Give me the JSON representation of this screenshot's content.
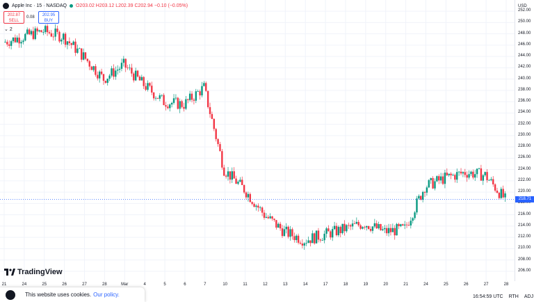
{
  "legend": {
    "title": "Apple Inc · 15 · NASDAQ",
    "ohlc": "O203.02 H203.12 L202.39 C202.94 −0.10 (−0.05%)"
  },
  "trade": {
    "sell_price": "202.87",
    "sell_label": "SELL",
    "spread": "0.08",
    "buy_price": "202.95",
    "buy_label": "BUY",
    "collapse_label": "2"
  },
  "branding": {
    "name": "TradingView"
  },
  "cookie": {
    "text": "This website uses cookies.",
    "link": "Our policy."
  },
  "price_axis": {
    "currency": "USD",
    "last_price": "218.71",
    "ticks": [
      "252.00",
      "250.00",
      "248.00",
      "246.00",
      "244.00",
      "242.00",
      "240.00",
      "238.00",
      "236.00",
      "234.00",
      "232.00",
      "230.00",
      "228.00",
      "226.00",
      "224.00",
      "222.00",
      "220.00",
      "218.00",
      "216.00",
      "214.00",
      "212.00",
      "210.00",
      "208.00",
      "206.00"
    ]
  },
  "time_axis": {
    "ticks": [
      "21",
      "24",
      "25",
      "26",
      "27",
      "28",
      "Mar",
      "4",
      "5",
      "6",
      "7",
      "10",
      "11",
      "12",
      "13",
      "14",
      "17",
      "18",
      "19",
      "20",
      "21",
      "24",
      "25",
      "26",
      "27",
      "28"
    ]
  },
  "footer": {
    "time": "16:54:59 UTC",
    "session": "RTH",
    "adj": "ADJ"
  },
  "chart_data": {
    "type": "line",
    "title": "Apple Inc · 15 · NASDAQ",
    "xlabel": "",
    "ylabel": "",
    "ylim": [
      205,
      253
    ],
    "x": [
      "21",
      "24",
      "25",
      "26",
      "27",
      "28",
      "Mar",
      "4",
      "5",
      "6",
      "7",
      "10",
      "11",
      "12",
      "13",
      "14",
      "17",
      "18",
      "19",
      "20",
      "21",
      "24",
      "25",
      "26",
      "27",
      "28"
    ],
    "series": [
      {
        "values": [
          246.5,
          247.5,
          248.5,
          247.5,
          244.0,
          240.0,
          242.5,
          239.0,
          236.0,
          235.5,
          238.5,
          224.0,
          220.5,
          216.0,
          213.0,
          211.5,
          212.5,
          213.5,
          214.5,
          213.0,
          213.5,
          221.0,
          222.5,
          223.5,
          223.0,
          218.7
        ]
      }
    ]
  }
}
